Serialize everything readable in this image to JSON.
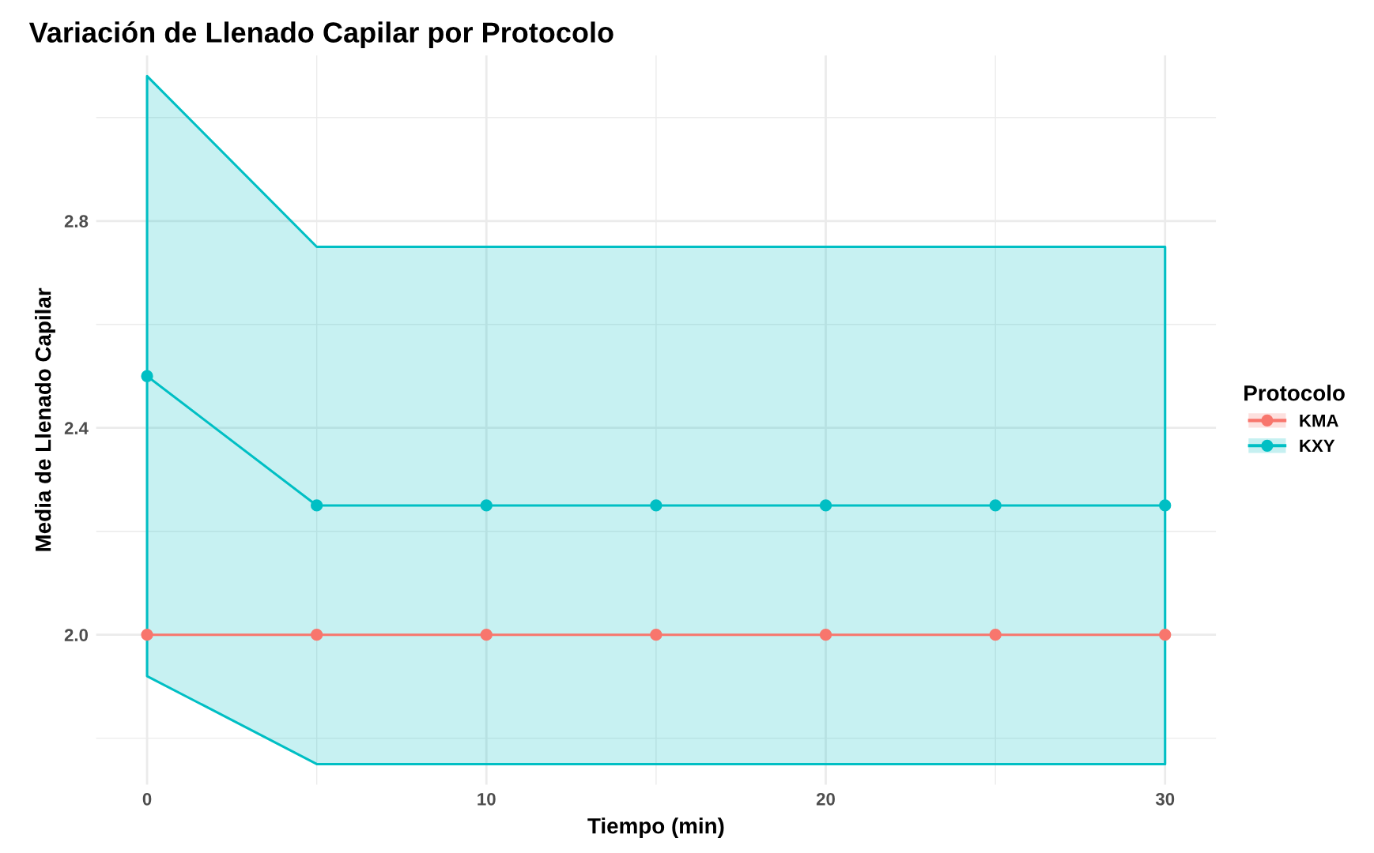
{
  "chart_data": {
    "type": "line",
    "title": "Variación de Llenado Capilar por Protocolo",
    "xlabel": "Tiempo (min)",
    "ylabel": "Media de Llenado Capilar",
    "legend_title": "Protocolo",
    "x": [
      0,
      5,
      10,
      15,
      20,
      25,
      30
    ],
    "series": [
      {
        "name": "KMA",
        "color": "#f8766d",
        "values": [
          2.0,
          2.0,
          2.0,
          2.0,
          2.0,
          2.0,
          2.0
        ]
      },
      {
        "name": "KXY",
        "color": "#00bfc4",
        "values": [
          2.5,
          2.25,
          2.25,
          2.25,
          2.25,
          2.25,
          2.25
        ],
        "lower": [
          1.92,
          1.75,
          1.75,
          1.75,
          1.75,
          1.75,
          1.75
        ],
        "upper": [
          3.08,
          2.75,
          2.75,
          2.75,
          2.75,
          2.75,
          2.75
        ]
      }
    ],
    "xlim": [
      -1.5,
      31.5
    ],
    "ylim": [
      1.71,
      3.12
    ],
    "xticks": [
      0,
      {
        "value": 5,
        "label": null
      },
      10,
      {
        "value": 15,
        "label": null
      },
      20,
      {
        "value": 25,
        "label": null
      },
      30
    ],
    "yticks": [
      {
        "value": 1.8,
        "label": null
      },
      {
        "value": 2.0,
        "label": "2.0"
      },
      {
        "value": 2.2,
        "label": null
      },
      2.4,
      {
        "value": 2.6,
        "label": null
      },
      2.8,
      {
        "value": 3.0,
        "label": null
      }
    ],
    "grid": true,
    "legend": "right",
    "marker": "circle",
    "line_style": "solid"
  }
}
